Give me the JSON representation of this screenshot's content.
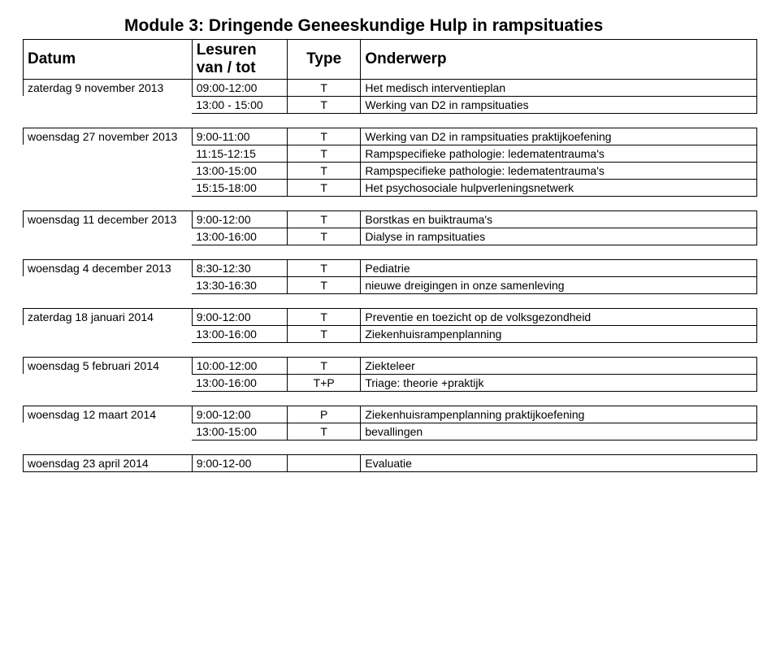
{
  "title": "Module 3: Dringende Geneeskundige Hulp in rampsituaties",
  "headers": {
    "date": "Datum",
    "hours": "Lesuren van / tot",
    "type": "Type",
    "subject": "Onderwerp"
  },
  "groups": [
    {
      "rows": [
        {
          "date": "zaterdag 9 november 2013",
          "hours": "09:00-12:00",
          "type": "T",
          "subject": "Het medisch interventieplan"
        },
        {
          "date": "",
          "hours": "13:00 - 15:00",
          "type": "T",
          "subject": "Werking van D2 in rampsituaties"
        }
      ]
    },
    {
      "rows": [
        {
          "date": "woensdag 27 november 2013",
          "hours": "9:00-11:00",
          "type": "T",
          "subject": "Werking van D2 in rampsituaties praktijkoefening"
        },
        {
          "date": "",
          "hours": "11:15-12:15",
          "type": "T",
          "subject": "Rampspecifieke pathologie: ledematentrauma's"
        },
        {
          "date": "",
          "hours": "13:00-15:00",
          "type": "T",
          "subject": "Rampspecifieke pathologie: ledematentrauma's"
        },
        {
          "date": "",
          "hours": "15:15-18:00",
          "type": "T",
          "subject": "Het psychosociale hulpverleningsnetwerk"
        }
      ]
    },
    {
      "rows": [
        {
          "date": "woensdag 11 december 2013",
          "hours": "9:00-12:00",
          "type": "T",
          "subject": "Borstkas en buiktrauma's"
        },
        {
          "date": "",
          "hours": "13:00-16:00",
          "type": "T",
          "subject": "Dialyse in rampsituaties"
        }
      ]
    },
    {
      "rows": [
        {
          "date": "woensdag 4 december 2013",
          "hours": "8:30-12:30",
          "type": "T",
          "subject": "Pediatrie"
        },
        {
          "date": "",
          "hours": "13:30-16:30",
          "type": "T",
          "subject": "nieuwe dreigingen in onze samenleving"
        }
      ]
    },
    {
      "rows": [
        {
          "date": "zaterdag 18 januari 2014",
          "hours": "9:00-12:00",
          "type": "T",
          "subject": "Preventie en toezicht op de volksgezondheid"
        },
        {
          "date": "",
          "hours": "13:00-16:00",
          "type": "T",
          "subject": "Ziekenhuisrampenplanning"
        }
      ]
    },
    {
      "rows": [
        {
          "date": "woensdag 5 februari 2014",
          "hours": "10:00-12:00",
          "type": "T",
          "subject": "Ziekteleer"
        },
        {
          "date": "",
          "hours": "13:00-16:00",
          "type": "T+P",
          "subject": "Triage: theorie +praktijk"
        }
      ]
    },
    {
      "rows": [
        {
          "date": "woensdag 12 maart 2014",
          "hours": "9:00-12:00",
          "type": "P",
          "subject": "Ziekenhuisrampenplanning praktijkoefening"
        },
        {
          "date": "",
          "hours": "13:00-15:00",
          "type": "T",
          "subject": "bevallingen"
        }
      ]
    },
    {
      "rows": [
        {
          "date": "woensdag 23 april 2014",
          "hours": "9:00-12-00",
          "type": "",
          "subject": "Evaluatie"
        }
      ]
    }
  ]
}
